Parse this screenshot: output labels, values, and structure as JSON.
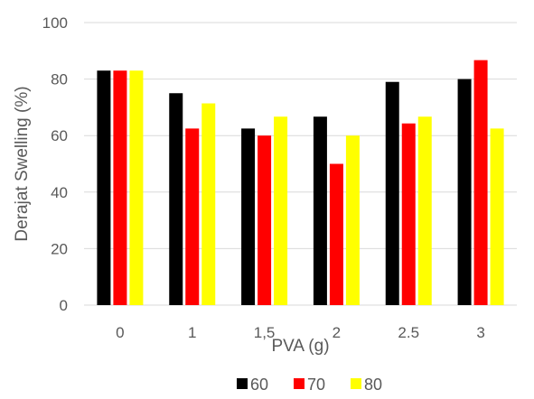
{
  "chart_data": {
    "type": "bar",
    "title": "",
    "xlabel": "PVA (g)",
    "ylabel": "Derajat Swelling (%)",
    "ylim": [
      0,
      100
    ],
    "yticks": [
      "0",
      "20",
      "40",
      "60",
      "80",
      "100"
    ],
    "grid": "horizontal",
    "legend_position": "bottom",
    "categories": [
      "0",
      "1",
      "1,5",
      "2",
      "2.5",
      "3"
    ],
    "series": [
      {
        "name": "60",
        "color": "#000000",
        "values": [
          83,
          75,
          62.5,
          66.7,
          79,
          80
        ]
      },
      {
        "name": "70",
        "color": "#ff0000",
        "values": [
          83,
          62.5,
          60,
          50,
          64.3,
          86.7
        ]
      },
      {
        "name": "80",
        "color": "#ffff00",
        "values": [
          83,
          71.4,
          66.7,
          60,
          66.7,
          62.5
        ]
      }
    ]
  }
}
